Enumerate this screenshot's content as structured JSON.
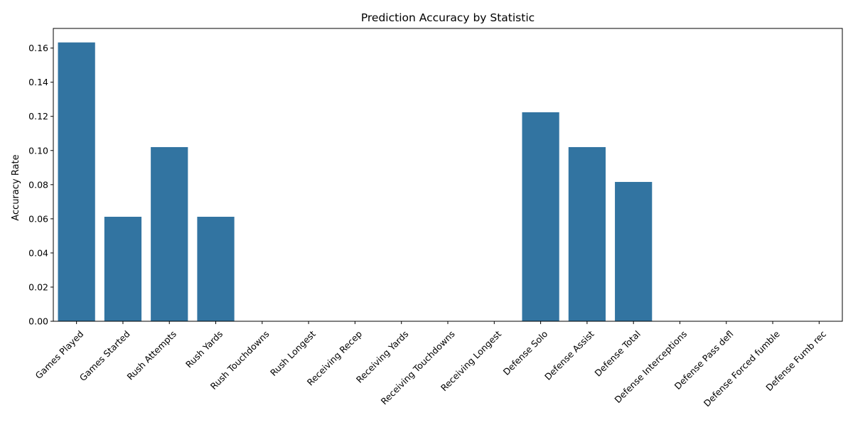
{
  "chart_data": {
    "type": "bar",
    "title": "Prediction Accuracy by Statistic",
    "xlabel": "",
    "ylabel": "Accuracy Rate",
    "categories": [
      "Games Played",
      "Games Started",
      "Rush Attempts",
      "Rush Yards",
      "Rush Touchdowns",
      "Rush Longest",
      "Receiving Recep",
      "Receiving Yards",
      "Receiving Touchdowns",
      "Receiving Longest",
      "Defense Solo",
      "Defense Assist",
      "Defense Total",
      "Defense Interceptions",
      "Defense Pass defl",
      "Defense Forced fumble",
      "Defense Fumb rec"
    ],
    "values": [
      0.1633,
      0.0612,
      0.102,
      0.0612,
      0,
      0,
      0,
      0,
      0,
      0,
      0.1224,
      0.102,
      0.0816,
      0,
      0,
      0,
      0
    ],
    "ylim": [
      0,
      0.1715
    ],
    "yticks": [
      "0.00",
      "0.02",
      "0.04",
      "0.06",
      "0.08",
      "0.10",
      "0.12",
      "0.14",
      "0.16"
    ],
    "bar_color": "#3274a1",
    "grid": false,
    "legend": "none"
  }
}
